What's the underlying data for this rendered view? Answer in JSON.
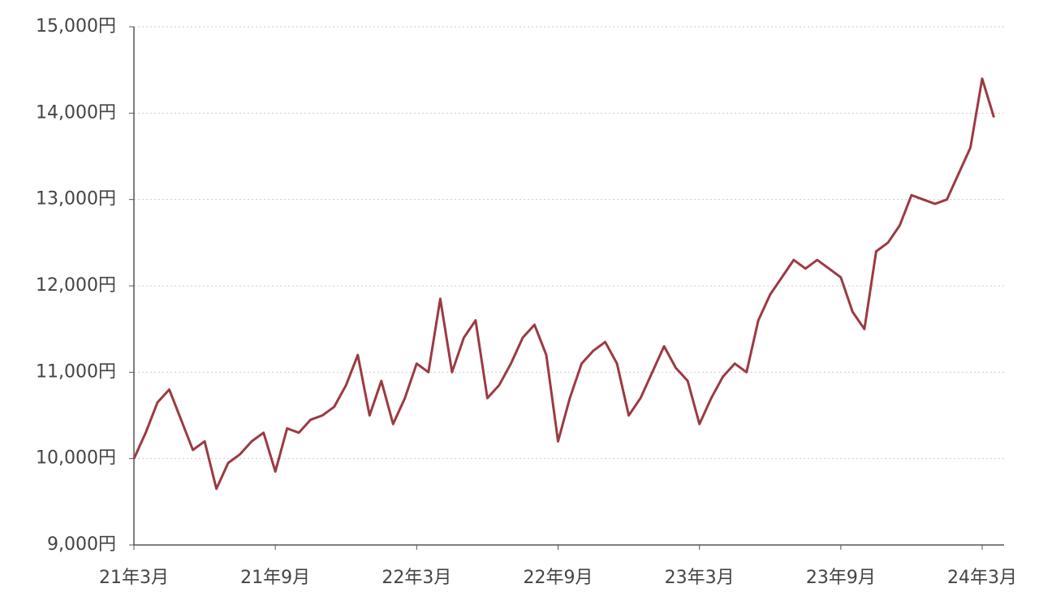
{
  "chart_data": {
    "type": "line",
    "categories": [
      "21年3月",
      null,
      null,
      null,
      null,
      null,
      null,
      null,
      null,
      null,
      null,
      null,
      "21年9月",
      null,
      null,
      null,
      null,
      null,
      null,
      null,
      null,
      null,
      null,
      null,
      "22年3月",
      null,
      null,
      null,
      null,
      null,
      null,
      null,
      null,
      null,
      null,
      null,
      "22年9月",
      null,
      null,
      null,
      null,
      null,
      null,
      null,
      null,
      null,
      null,
      null,
      "23年3月",
      null,
      null,
      null,
      null,
      null,
      null,
      null,
      null,
      null,
      null,
      null,
      "23年9月",
      null,
      null,
      null,
      null,
      null,
      null,
      null,
      null,
      null,
      null,
      null,
      "24年3月",
      null
    ],
    "series": [
      {
        "color": "#9b3a42",
        "values": [
          10000,
          10300,
          10650,
          10800,
          10450,
          10100,
          10200,
          9650,
          9950,
          10050,
          10200,
          10300,
          9850,
          10350,
          10300,
          10450,
          10500,
          10600,
          10850,
          11200,
          10500,
          10900,
          10400,
          10700,
          11100,
          11000,
          11850,
          11000,
          11400,
          11600,
          10700,
          10850,
          11100,
          11400,
          11550,
          11200,
          10200,
          10700,
          11100,
          11250,
          11350,
          11100,
          10500,
          10700,
          11000,
          11300,
          11050,
          10900,
          10400,
          10700,
          10950,
          11100,
          11000,
          11600,
          11900,
          12100,
          12300,
          12200,
          12300,
          12200,
          12100,
          11700,
          11500,
          12400,
          12500,
          12700,
          13050,
          13000,
          12950,
          13000,
          13300,
          13600,
          14400,
          13950
        ]
      }
    ],
    "ylim": [
      9000,
      15000
    ],
    "yticks": [
      {
        "value": 9000,
        "label": "9,000円"
      },
      {
        "value": 10000,
        "label": "10,000円"
      },
      {
        "value": 11000,
        "label": "11,000円"
      },
      {
        "value": 12000,
        "label": "12,000円"
      },
      {
        "value": 13000,
        "label": "13,000円"
      },
      {
        "value": 14000,
        "label": "14,000円"
      },
      {
        "value": 15000,
        "label": "15,000円"
      }
    ],
    "grid": true
  }
}
